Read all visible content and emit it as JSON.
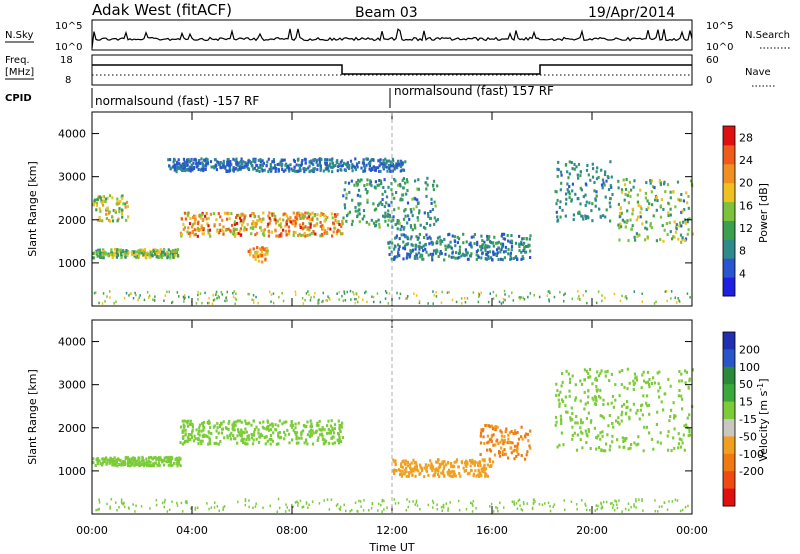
{
  "header": {
    "station": "Adak West (fitACF)",
    "beam": "Beam 03",
    "date": "19/Apr/2014"
  },
  "panels": {
    "nsky": {
      "left_label": "N.Sky",
      "left_ticks": [
        "10^5",
        "10^0"
      ],
      "right_label": "N.Search",
      "right_ticks": [
        "10^5",
        "10^0"
      ]
    },
    "freq": {
      "left_label_1": "Freq.",
      "left_label_2": "[MHz]",
      "left_ticks": [
        "18",
        "8"
      ],
      "right_label": "Nave",
      "right_ticks": [
        "60",
        "0"
      ]
    },
    "cpid": {
      "label": "CPID",
      "segments": [
        "normalsound (fast) -157 RF",
        "normalsound (fast) 157 RF"
      ]
    }
  },
  "chart_data": [
    {
      "type": "heatmap",
      "title": "",
      "quantity": "Power",
      "ylabel": "Slant Range [km]",
      "xlabel": "",
      "xlim": [
        "00:00",
        "24:00"
      ],
      "ylim": [
        0,
        4500
      ],
      "yticks": [
        1000,
        2000,
        3000,
        4000
      ],
      "colorbar": {
        "label": "Power [dB]",
        "ticks": [
          4,
          8,
          12,
          16,
          20,
          24,
          28
        ],
        "range": [
          0,
          30
        ],
        "colors": [
          "#2020e0",
          "#2a55d0",
          "#2f8a8a",
          "#3aa050",
          "#7cc23a",
          "#f0c020",
          "#f09020",
          "#f05a1a",
          "#e01010"
        ]
      },
      "echo_bands": [
        {
          "t_start": 0.0,
          "t_end": 3.5,
          "range_km": [
            1150,
            1350
          ],
          "power_db": [
            8,
            20
          ]
        },
        {
          "t_start": 0.0,
          "t_end": 1.4,
          "range_km": [
            2000,
            2600
          ],
          "power_db": [
            10,
            22
          ]
        },
        {
          "t_start": 3.5,
          "t_end": 10.0,
          "range_km": [
            1650,
            2200
          ],
          "power_db": [
            14,
            28
          ]
        },
        {
          "t_start": 6.2,
          "t_end": 7.0,
          "range_km": [
            1050,
            1400
          ],
          "power_db": [
            16,
            26
          ]
        },
        {
          "t_start": 10.0,
          "t_end": 13.8,
          "range_km": [
            1800,
            3000
          ],
          "power_db": [
            6,
            14
          ]
        },
        {
          "t_start": 11.8,
          "t_end": 17.5,
          "range_km": [
            1100,
            1700
          ],
          "power_db": [
            4,
            12
          ]
        },
        {
          "t_start": 18.5,
          "t_end": 20.8,
          "range_km": [
            2000,
            3400
          ],
          "power_db": [
            6,
            12
          ]
        },
        {
          "t_start": 21.0,
          "t_end": 24.0,
          "range_km": [
            1500,
            3000
          ],
          "power_db": [
            6,
            20
          ]
        },
        {
          "t_start": 3.0,
          "t_end": 12.5,
          "range_km": [
            3150,
            3450
          ],
          "power_db": [
            4,
            10
          ]
        }
      ]
    },
    {
      "type": "heatmap",
      "title": "",
      "quantity": "Velocity",
      "ylabel": "Slant Range [km]",
      "xlabel": "Time UT",
      "xlim": [
        "00:00",
        "24:00"
      ],
      "ylim": [
        0,
        4500
      ],
      "xticks": [
        "00:00",
        "04:00",
        "08:00",
        "12:00",
        "16:00",
        "20:00",
        "00:00"
      ],
      "yticks": [
        1000,
        2000,
        3000,
        4000
      ],
      "colorbar": {
        "label": "Velocity [m s^-1]",
        "ticks": [
          200,
          100,
          50,
          15,
          -15,
          -50,
          -100,
          -200
        ],
        "colors": [
          "#2030b0",
          "#2a55c8",
          "#2a8a3a",
          "#3aa83a",
          "#7ccc3a",
          "#c8c8c0",
          "#f0a020",
          "#f07a10",
          "#f04a10",
          "#e01010"
        ]
      },
      "echo_bands": [
        {
          "t_start": 0.0,
          "t_end": 3.5,
          "range_km": [
            1150,
            1350
          ],
          "velocity": [
            -15,
            15
          ]
        },
        {
          "t_start": 3.5,
          "t_end": 10.0,
          "range_km": [
            1650,
            2200
          ],
          "velocity": [
            -15,
            15
          ]
        },
        {
          "t_start": 12.0,
          "t_end": 16.0,
          "range_km": [
            900,
            1300
          ],
          "velocity": [
            -100,
            -50
          ]
        },
        {
          "t_start": 15.5,
          "t_end": 17.5,
          "range_km": [
            1300,
            2100
          ],
          "velocity": [
            -200,
            -50
          ]
        },
        {
          "t_start": 18.5,
          "t_end": 24.0,
          "range_km": [
            1500,
            3400
          ],
          "velocity": [
            -15,
            15
          ]
        }
      ]
    }
  ]
}
